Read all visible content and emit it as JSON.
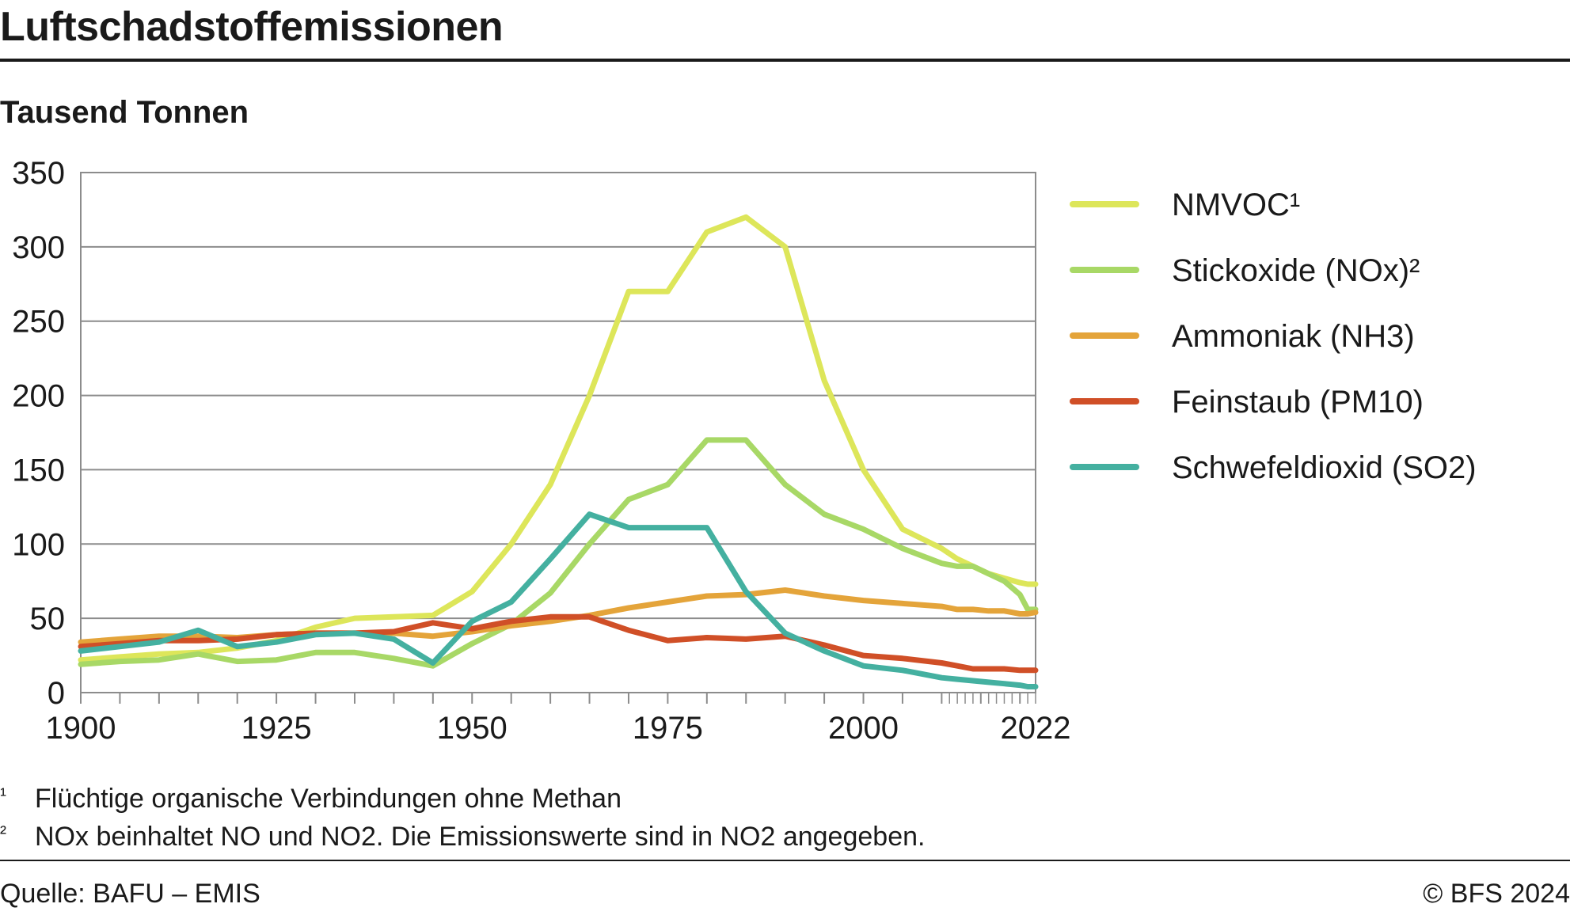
{
  "title": "Luftschadstoffemissionen",
  "unit": "Tausend Tonnen",
  "footnotes": [
    {
      "mark": "¹",
      "text": "Flüchtige organische Verbindungen ohne Methan"
    },
    {
      "mark": "²",
      "text": "NOx beinhaltet NO und NO2. Die Emissionswerte sind in NO2 angegeben."
    }
  ],
  "source": "Quelle: BAFU – EMIS",
  "copyright": "© BFS 2024",
  "chart_data": {
    "type": "line",
    "title": "Luftschadstoffemissionen",
    "ylabel": "Tausend Tonnen",
    "xlim": [
      1900,
      2022
    ],
    "ylim": [
      0,
      350
    ],
    "x_ticks": [
      1900,
      1925,
      1950,
      1975,
      2000,
      2022
    ],
    "y_ticks": [
      0,
      50,
      100,
      150,
      200,
      250,
      300,
      350
    ],
    "grid": "horizontal",
    "legend": "right",
    "series": [
      {
        "name": "NMVOC¹",
        "color": "#dde65a",
        "x": [
          1900,
          1905,
          1910,
          1915,
          1920,
          1925,
          1930,
          1935,
          1940,
          1945,
          1950,
          1955,
          1960,
          1965,
          1970,
          1975,
          1980,
          1985,
          1990,
          1995,
          2000,
          2005,
          2010,
          2012,
          2014,
          2016,
          2018,
          2020,
          2021,
          2022
        ],
        "y": [
          22,
          24,
          26,
          27,
          30,
          35,
          44,
          50,
          51,
          52,
          68,
          100,
          140,
          200,
          270,
          270,
          310,
          320,
          300,
          210,
          150,
          110,
          97,
          90,
          85,
          80,
          77,
          74,
          73,
          73
        ]
      },
      {
        "name": "Stickoxide (NOx)²",
        "color": "#a8d866",
        "x": [
          1900,
          1905,
          1910,
          1915,
          1920,
          1925,
          1930,
          1935,
          1940,
          1945,
          1950,
          1955,
          1960,
          1965,
          1970,
          1975,
          1980,
          1985,
          1990,
          1995,
          2000,
          2005,
          2010,
          2012,
          2014,
          2016,
          2018,
          2020,
          2021,
          2022
        ],
        "y": [
          19,
          21,
          22,
          26,
          21,
          22,
          27,
          27,
          23,
          18,
          33,
          46,
          67,
          100,
          130,
          140,
          170,
          170,
          140,
          120,
          110,
          97,
          87,
          85,
          85,
          80,
          75,
          66,
          56,
          56
        ]
      },
      {
        "name": "Ammoniak (NH3)",
        "color": "#e4a43a",
        "x": [
          1900,
          1905,
          1910,
          1915,
          1920,
          1925,
          1930,
          1935,
          1940,
          1945,
          1950,
          1955,
          1960,
          1965,
          1970,
          1975,
          1980,
          1985,
          1990,
          1995,
          2000,
          2005,
          2010,
          2012,
          2014,
          2016,
          2018,
          2020,
          2021,
          2022
        ],
        "y": [
          34,
          36,
          38,
          38,
          37,
          39,
          40,
          40,
          40,
          38,
          41,
          45,
          48,
          52,
          57,
          61,
          65,
          66,
          69,
          65,
          62,
          60,
          58,
          56,
          56,
          55,
          55,
          53,
          53,
          54
        ]
      },
      {
        "name": "Feinstaub (PM10)",
        "color": "#d04f27",
        "x": [
          1900,
          1905,
          1910,
          1915,
          1920,
          1925,
          1930,
          1935,
          1940,
          1945,
          1950,
          1955,
          1960,
          1965,
          1970,
          1975,
          1980,
          1985,
          1990,
          1995,
          2000,
          2005,
          2010,
          2012,
          2014,
          2016,
          2018,
          2020,
          2021,
          2022
        ],
        "y": [
          31,
          33,
          35,
          35,
          36,
          39,
          40,
          40,
          41,
          47,
          43,
          48,
          51,
          51,
          42,
          35,
          37,
          36,
          38,
          32,
          25,
          23,
          20,
          18,
          16,
          16,
          16,
          15,
          15,
          15
        ]
      },
      {
        "name": "Schwefeldioxid (SO2)",
        "color": "#44b0a0",
        "x": [
          1900,
          1905,
          1910,
          1915,
          1920,
          1925,
          1930,
          1935,
          1940,
          1945,
          1950,
          1955,
          1960,
          1965,
          1970,
          1975,
          1980,
          1985,
          1990,
          1995,
          2000,
          2005,
          2010,
          2012,
          2014,
          2016,
          2018,
          2020,
          2021,
          2022
        ],
        "y": [
          28,
          31,
          34,
          42,
          31,
          34,
          39,
          40,
          36,
          20,
          48,
          61,
          90,
          120,
          111,
          111,
          111,
          68,
          40,
          28,
          18,
          15,
          10,
          9,
          8,
          7,
          6,
          5,
          4,
          4
        ]
      }
    ]
  }
}
